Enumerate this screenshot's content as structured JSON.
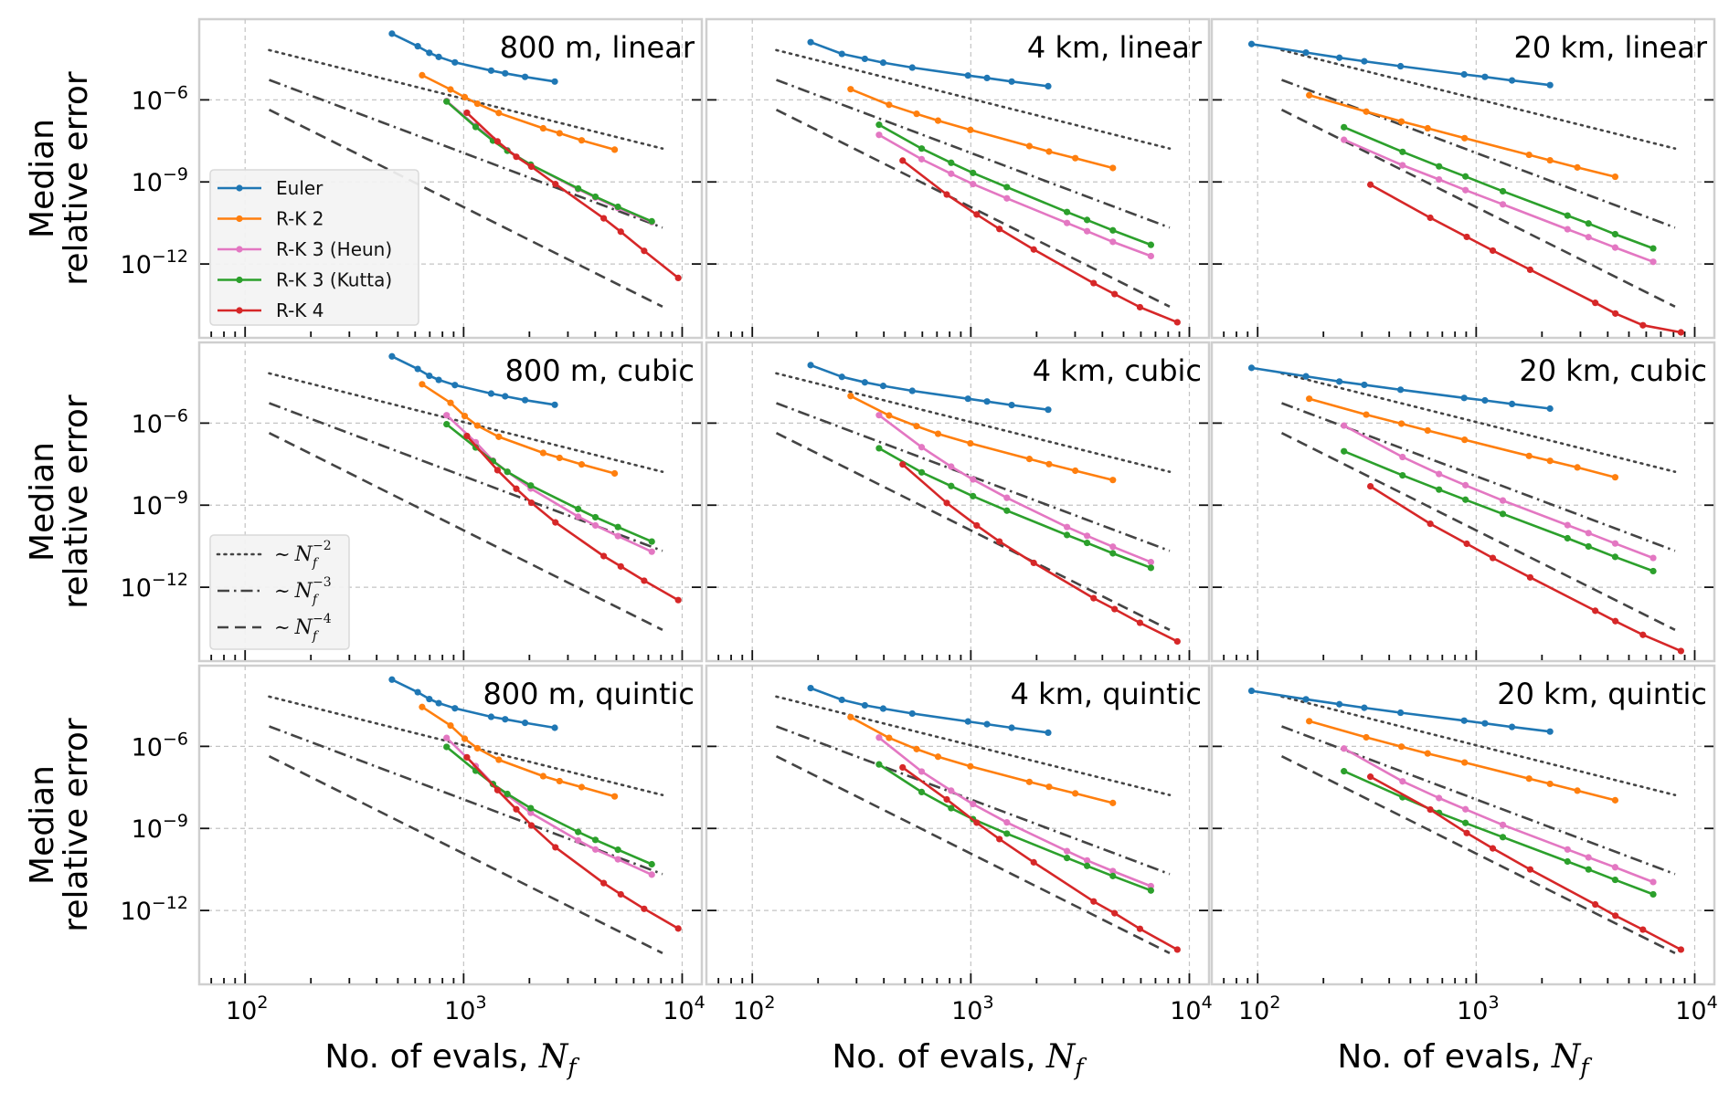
{
  "chart_data": {
    "type": "line",
    "xscale": "log",
    "yscale": "log",
    "grid": true,
    "xlim_log10": [
      1.79,
      4.09
    ],
    "ylim_log10": [
      -14.7,
      -3.05
    ],
    "xlabel": {
      "text": "No. of evals, ",
      "symbol": "N",
      "sub": "f"
    },
    "ylabel": {
      "line1": "Median",
      "line2": "relative error"
    },
    "xticks": [
      {
        "log10": 2,
        "base": "10",
        "exp": "2"
      },
      {
        "log10": 3,
        "base": "10",
        "exp": "3"
      },
      {
        "log10": 4,
        "base": "10",
        "exp": "4"
      }
    ],
    "yticks": [
      {
        "log10": -6,
        "base": "10",
        "exp": "−6"
      },
      {
        "log10": -9,
        "base": "10",
        "exp": "−9"
      },
      {
        "log10": -12,
        "base": "10",
        "exp": "−12"
      }
    ],
    "series_meta": [
      {
        "key": "euler",
        "name": "Euler",
        "color": "#1f77b4",
        "nf_key": "euler"
      },
      {
        "key": "rk2",
        "name": "R-K 2",
        "color": "#ff7f0e",
        "nf_key": "rk2"
      },
      {
        "key": "heun",
        "name": "R-K 3 (Heun)",
        "color": "#e377c2",
        "nf_key": "rk3"
      },
      {
        "key": "kutta",
        "name": "R-K 3 (Kutta)",
        "color": "#2ca02c",
        "nf_key": "rk3"
      },
      {
        "key": "rk4",
        "name": "R-K 4",
        "color": "#d62728",
        "nf_key": "rk4"
      }
    ],
    "reference_lines": [
      {
        "style": "dotted",
        "slope": -2,
        "log10_Nf_range": [
          2.11,
          3.91
        ],
        "log10_error_at_start": -4.18,
        "prefix": "∼",
        "symbol": "N",
        "sub": "f",
        "exp": "−2",
        "color": "#444444"
      },
      {
        "style": "dashdot",
        "slope": -3,
        "log10_Nf_range": [
          2.11,
          3.91
        ],
        "log10_error_at_start": -5.27,
        "prefix": "∼",
        "symbol": "N",
        "sub": "f",
        "exp": "−3",
        "color": "#444444"
      },
      {
        "style": "dashed",
        "slope": -4,
        "log10_Nf_range": [
          2.11,
          3.91
        ],
        "log10_error_at_start": -6.36,
        "prefix": "∼",
        "symbol": "N",
        "sub": "f",
        "exp": "−4",
        "color": "#444444"
      }
    ],
    "nf_log10_by_resolution": {
      "800 m": {
        "euler": [
          2.672,
          2.79,
          2.843,
          2.886,
          2.96,
          3.126,
          3.19,
          3.281,
          3.417
        ],
        "rk2": [
          2.81,
          2.94,
          3.005,
          3.063,
          3.161,
          3.364,
          3.439,
          3.54,
          3.691
        ],
        "rk3": [
          2.922,
          3.055,
          3.134,
          3.2,
          3.307,
          3.524,
          3.603,
          3.706,
          3.861
        ],
        "rk4": [
          3.015,
          3.155,
          3.241,
          3.31,
          3.42,
          3.641,
          3.719,
          3.826,
          3.982
        ]
      },
      "4 km": {
        "euler": [
          2.267,
          2.41,
          2.515,
          2.599,
          2.732,
          2.987,
          3.074,
          3.187,
          3.354
        ],
        "rk2": [
          2.45,
          2.626,
          2.752,
          2.85,
          2.998,
          3.268,
          3.358,
          3.478,
          3.65
        ],
        "rk3": [
          2.58,
          2.775,
          2.91,
          3.01,
          3.165,
          3.44,
          3.532,
          3.65,
          3.824
        ],
        "rk4": [
          2.688,
          2.89,
          3.027,
          3.131,
          3.288,
          3.562,
          3.658,
          3.774,
          3.945
        ]
      },
      "20 km": {
        "euler": [
          1.972,
          2.221,
          2.374,
          2.488,
          2.654,
          2.945,
          3.04,
          3.164,
          3.338
        ],
        "rk2": [
          2.236,
          2.497,
          2.658,
          2.778,
          2.947,
          3.242,
          3.338,
          3.463,
          3.636
        ],
        "rk3": [
          2.395,
          2.663,
          2.83,
          2.951,
          3.122,
          3.418,
          3.514,
          3.636,
          3.81
        ],
        "rk4": [
          2.516,
          2.79,
          2.957,
          3.076,
          3.247,
          3.545,
          3.637,
          3.763,
          3.937
        ]
      }
    },
    "subplots": [
      {
        "title": "800 m, linear",
        "resolution": "800 m",
        "interpolation": "linear",
        "legend": "series",
        "legend_loc": "lower-left",
        "log10_error": {
          "euler": [
            -3.58,
            -4.04,
            -4.28,
            -4.43,
            -4.63,
            -4.93,
            -5.03,
            -5.16,
            -5.33
          ],
          "rk2": [
            -5.1,
            -5.62,
            -5.9,
            -6.14,
            -6.48,
            -7.04,
            -7.22,
            -7.48,
            -7.82
          ],
          "heun": [
            -6.04,
            -6.95,
            -7.45,
            -7.84,
            -8.37,
            -9.27,
            -9.57,
            -9.95,
            -10.47
          ],
          "kutta": [
            -6.06,
            -6.99,
            -7.49,
            -7.86,
            -8.37,
            -9.24,
            -9.54,
            -9.91,
            -10.44
          ],
          "rk4": [
            -6.47,
            -7.52,
            -8.08,
            -8.44,
            -9.08,
            -10.33,
            -10.82,
            -11.52,
            -12.51
          ]
        }
      },
      {
        "title": "4 km, linear",
        "resolution": "4 km",
        "interpolation": "linear",
        "legend": null,
        "log10_error": {
          "euler": [
            -3.89,
            -4.32,
            -4.5,
            -4.64,
            -4.82,
            -5.11,
            -5.2,
            -5.33,
            -5.5
          ],
          "rk2": [
            -5.61,
            -6.18,
            -6.51,
            -6.76,
            -7.1,
            -7.69,
            -7.89,
            -8.13,
            -8.49
          ],
          "heun": [
            -7.28,
            -8.17,
            -8.7,
            -9.08,
            -9.6,
            -10.5,
            -10.8,
            -11.19,
            -11.71
          ],
          "kutta": [
            -6.91,
            -7.78,
            -8.3,
            -8.67,
            -9.19,
            -10.1,
            -10.39,
            -10.77,
            -11.3
          ],
          "rk4": [
            -8.22,
            -9.46,
            -10.19,
            -10.72,
            -11.47,
            -12.7,
            -13.1,
            -13.58,
            -14.13
          ]
        }
      },
      {
        "title": "20 km, linear",
        "resolution": "20 km",
        "interpolation": "linear",
        "legend": null,
        "log10_error": {
          "euler": [
            -3.96,
            -4.27,
            -4.46,
            -4.59,
            -4.77,
            -5.07,
            -5.16,
            -5.29,
            -5.46
          ],
          "rk2": [
            -5.83,
            -6.43,
            -6.79,
            -7.04,
            -7.4,
            -8.01,
            -8.21,
            -8.47,
            -8.81
          ],
          "heun": [
            -7.46,
            -8.39,
            -8.91,
            -9.3,
            -9.82,
            -10.73,
            -11.02,
            -11.4,
            -11.92
          ],
          "kutta": [
            -7.0,
            -7.9,
            -8.43,
            -8.8,
            -9.34,
            -10.23,
            -10.52,
            -10.91,
            -11.43
          ],
          "rk4": [
            -9.1,
            -10.31,
            -11.01,
            -11.51,
            -12.21,
            -13.42,
            -13.81,
            -14.24,
            -14.5
          ]
        }
      },
      {
        "title": "800 m, cubic",
        "resolution": "800 m",
        "interpolation": "cubic",
        "legend": "reference",
        "legend_loc": "lower-left",
        "log10_error": {
          "euler": [
            -3.56,
            -4.02,
            -4.27,
            -4.42,
            -4.61,
            -4.92,
            -5.02,
            -5.16,
            -5.33
          ],
          "rk2": [
            -4.58,
            -5.26,
            -5.74,
            -6.09,
            -6.5,
            -7.09,
            -7.27,
            -7.51,
            -7.84
          ],
          "heun": [
            -5.71,
            -6.7,
            -7.37,
            -7.78,
            -8.39,
            -9.42,
            -9.74,
            -10.13,
            -10.7
          ],
          "kutta": [
            -6.04,
            -6.89,
            -7.39,
            -7.78,
            -8.28,
            -9.14,
            -9.44,
            -9.8,
            -10.33
          ],
          "rk4": [
            -6.47,
            -7.72,
            -8.4,
            -8.91,
            -9.63,
            -10.86,
            -11.24,
            -11.76,
            -12.47
          ]
        }
      },
      {
        "title": "4 km, cubic",
        "resolution": "4 km",
        "interpolation": "cubic",
        "legend": null,
        "log10_error": {
          "euler": [
            -3.88,
            -4.31,
            -4.51,
            -4.64,
            -4.82,
            -5.11,
            -5.21,
            -5.34,
            -5.51
          ],
          "rk2": [
            -5.01,
            -5.72,
            -6.11,
            -6.39,
            -6.74,
            -7.31,
            -7.5,
            -7.74,
            -8.08
          ],
          "heun": [
            -5.71,
            -6.88,
            -7.59,
            -8.06,
            -8.73,
            -9.8,
            -10.12,
            -10.52,
            -11.08
          ],
          "kutta": [
            -6.92,
            -7.8,
            -8.3,
            -8.67,
            -9.2,
            -10.09,
            -10.38,
            -10.76,
            -11.29
          ],
          "rk4": [
            -7.51,
            -8.92,
            -9.74,
            -10.33,
            -11.11,
            -12.4,
            -12.8,
            -13.3,
            -13.98
          ]
        }
      },
      {
        "title": "20 km, cubic",
        "resolution": "20 km",
        "interpolation": "cubic",
        "legend": null,
        "log10_error": {
          "euler": [
            -3.98,
            -4.29,
            -4.48,
            -4.6,
            -4.78,
            -5.08,
            -5.17,
            -5.3,
            -5.47
          ],
          "rk2": [
            -5.11,
            -5.69,
            -6.02,
            -6.27,
            -6.61,
            -7.2,
            -7.38,
            -7.62,
            -7.98
          ],
          "heun": [
            -6.09,
            -7.24,
            -7.86,
            -8.27,
            -8.83,
            -9.73,
            -10.02,
            -10.4,
            -10.93
          ],
          "kutta": [
            -7.03,
            -7.91,
            -8.43,
            -8.8,
            -9.32,
            -10.21,
            -10.51,
            -10.89,
            -11.41
          ],
          "rk4": [
            -8.31,
            -9.68,
            -10.41,
            -10.93,
            -11.64,
            -12.86,
            -13.24,
            -13.74,
            -14.33
          ]
        }
      },
      {
        "title": "800 m, quintic",
        "resolution": "800 m",
        "interpolation": "quintic",
        "legend": null,
        "log10_error": {
          "euler": [
            -3.56,
            -4.02,
            -4.27,
            -4.42,
            -4.61,
            -4.92,
            -5.01,
            -5.14,
            -5.32
          ],
          "rk2": [
            -4.56,
            -5.24,
            -5.72,
            -6.07,
            -6.49,
            -7.09,
            -7.27,
            -7.49,
            -7.83
          ],
          "heun": [
            -5.69,
            -6.72,
            -7.37,
            -7.78,
            -8.43,
            -9.44,
            -9.77,
            -10.13,
            -10.69
          ],
          "kutta": [
            -6.02,
            -6.89,
            -7.38,
            -7.74,
            -8.26,
            -9.13,
            -9.42,
            -9.78,
            -10.31
          ],
          "rk4": [
            -6.4,
            -7.6,
            -8.3,
            -8.89,
            -9.69,
            -11.0,
            -11.41,
            -11.94,
            -12.66
          ]
        }
      },
      {
        "title": "4 km, quintic",
        "resolution": "4 km",
        "interpolation": "quintic",
        "legend": null,
        "log10_error": {
          "euler": [
            -3.87,
            -4.3,
            -4.5,
            -4.62,
            -4.8,
            -5.09,
            -5.19,
            -5.32,
            -5.5
          ],
          "rk2": [
            -4.93,
            -5.69,
            -6.1,
            -6.38,
            -6.73,
            -7.3,
            -7.48,
            -7.72,
            -8.07
          ],
          "heun": [
            -5.68,
            -6.92,
            -7.62,
            -8.11,
            -8.78,
            -9.83,
            -10.17,
            -10.56,
            -11.11
          ],
          "kutta": [
            -6.66,
            -7.67,
            -8.26,
            -8.66,
            -9.19,
            -10.08,
            -10.37,
            -10.74,
            -11.27
          ],
          "rk4": [
            -6.77,
            -7.94,
            -8.79,
            -9.39,
            -10.24,
            -11.67,
            -12.1,
            -12.67,
            -13.43
          ]
        }
      },
      {
        "title": "20 km, quintic",
        "resolution": "20 km",
        "interpolation": "quintic",
        "legend": null,
        "log10_error": {
          "euler": [
            -3.97,
            -4.28,
            -4.46,
            -4.59,
            -4.77,
            -5.06,
            -5.16,
            -5.29,
            -5.46
          ],
          "rk2": [
            -5.08,
            -5.67,
            -6.01,
            -6.26,
            -6.59,
            -7.18,
            -7.37,
            -7.62,
            -7.97
          ],
          "heun": [
            -6.08,
            -7.28,
            -7.89,
            -8.3,
            -8.87,
            -9.77,
            -10.06,
            -10.42,
            -10.96
          ],
          "kutta": [
            -6.91,
            -7.86,
            -8.43,
            -8.8,
            -9.32,
            -10.21,
            -10.5,
            -10.88,
            -11.41
          ],
          "rk4": [
            -7.11,
            -8.31,
            -9.17,
            -9.73,
            -10.5,
            -11.78,
            -12.19,
            -12.7,
            -13.43
          ]
        }
      }
    ]
  }
}
